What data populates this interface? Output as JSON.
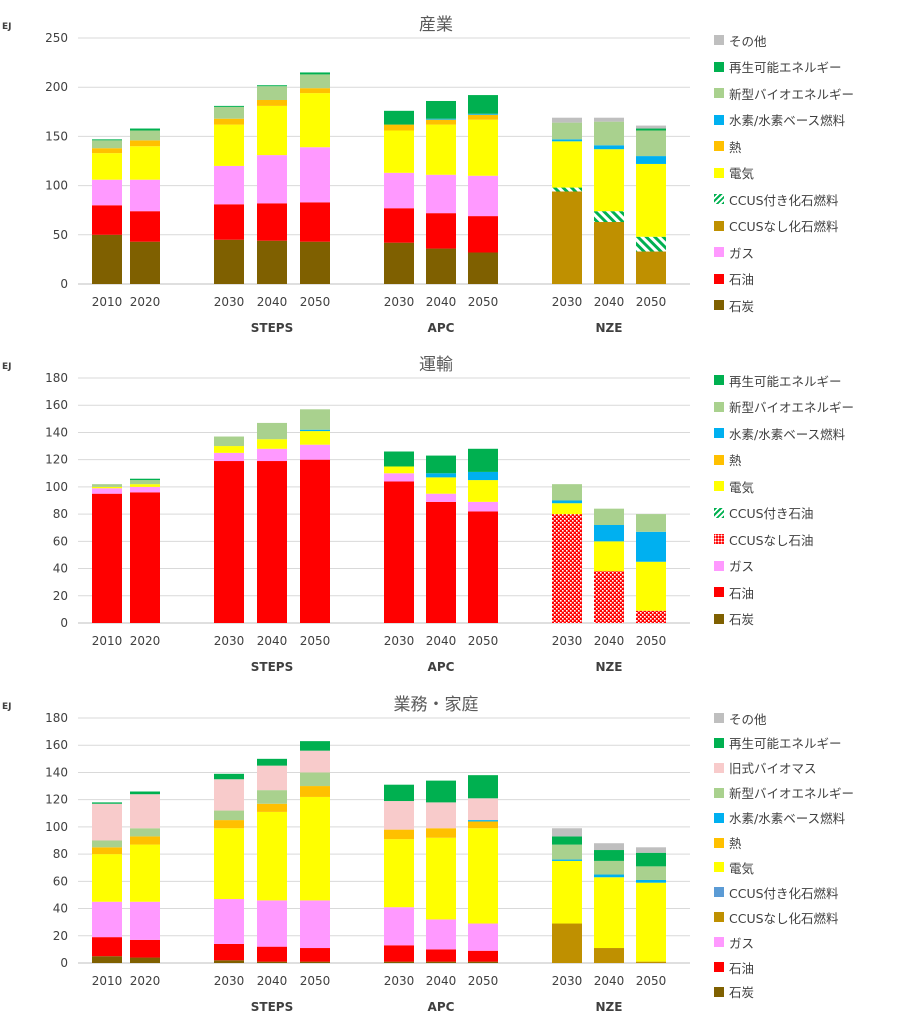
{
  "chart_data": [
    {
      "type": "bar",
      "stacked": true,
      "title": "産業",
      "ylabel": "EJ",
      "ylim": [
        0,
        250
      ],
      "yticks": [
        0,
        50,
        100,
        150,
        200,
        250
      ],
      "grid": true,
      "legend_position": "right",
      "groups": [
        {
          "label": "",
          "categories": [
            "2010",
            "2020"
          ]
        },
        {
          "label": "STEPS",
          "categories": [
            "2030",
            "2040",
            "2050"
          ]
        },
        {
          "label": "APC",
          "categories": [
            "2030",
            "2040",
            "2050"
          ]
        },
        {
          "label": "NZE",
          "categories": [
            "2030",
            "2040",
            "2050"
          ]
        }
      ],
      "series": [
        {
          "name": "石炭",
          "color": "#7f6000",
          "values": [
            50,
            43,
            45,
            44,
            43,
            42,
            36,
            32,
            0,
            0,
            0
          ]
        },
        {
          "name": "石油",
          "color": "#ff0000",
          "values": [
            30,
            31,
            36,
            38,
            40,
            35,
            36,
            37,
            0,
            0,
            0
          ]
        },
        {
          "name": "ガス",
          "color": "#ff99ff",
          "values": [
            26,
            32,
            39,
            49,
            56,
            36,
            39,
            41,
            0,
            0,
            0
          ]
        },
        {
          "name": "CCUSなし化石燃料",
          "color": "#bf9000",
          "values": [
            0,
            0,
            0,
            0,
            0,
            0,
            0,
            0,
            94,
            63,
            33
          ]
        },
        {
          "name": "CCUS付き化石燃料",
          "color": "#00b050",
          "pattern": "hatch",
          "values": [
            0,
            0,
            0,
            0,
            0,
            0,
            0,
            0,
            4,
            11,
            15
          ]
        },
        {
          "name": "電気",
          "color": "#ffff00",
          "values": [
            27,
            34,
            42,
            50,
            55,
            43,
            51,
            57,
            47,
            63,
            74
          ]
        },
        {
          "name": "熱",
          "color": "#ffc000",
          "values": [
            5,
            6,
            6,
            6,
            5,
            6,
            5,
            5,
            0,
            0,
            0
          ]
        },
        {
          "name": "水素/水素ベース燃料",
          "color": "#00b0f0",
          "values": [
            0,
            0,
            0,
            0,
            0,
            0,
            1,
            1,
            2,
            4,
            8
          ]
        },
        {
          "name": "新型バイオエネルギー",
          "color": "#a9d18e",
          "values": [
            8,
            10,
            12,
            14,
            14,
            0,
            0,
            0,
            17,
            24,
            26
          ]
        },
        {
          "name": "再生可能エネルギー",
          "color": "#00b050",
          "values": [
            1,
            2,
            1,
            1,
            2,
            14,
            18,
            19,
            0,
            0,
            2
          ]
        },
        {
          "name": "その他",
          "color": "#bfbfbf",
          "values": [
            0,
            0,
            0,
            0,
            0,
            0,
            0,
            0,
            5,
            4,
            3
          ]
        }
      ]
    },
    {
      "type": "bar",
      "stacked": true,
      "title": "運輸",
      "ylabel": "EJ",
      "ylim": [
        0,
        180
      ],
      "yticks": [
        0,
        20,
        40,
        60,
        80,
        100,
        120,
        140,
        160,
        180
      ],
      "grid": true,
      "legend_position": "right",
      "groups": [
        {
          "label": "",
          "categories": [
            "2010",
            "2020"
          ]
        },
        {
          "label": "STEPS",
          "categories": [
            "2030",
            "2040",
            "2050"
          ]
        },
        {
          "label": "APC",
          "categories": [
            "2030",
            "2040",
            "2050"
          ]
        },
        {
          "label": "NZE",
          "categories": [
            "2030",
            "2040",
            "2050"
          ]
        }
      ],
      "series": [
        {
          "name": "石炭",
          "color": "#7f6000",
          "values": [
            0,
            0,
            0,
            0,
            0,
            0,
            0,
            0,
            0,
            0,
            0
          ]
        },
        {
          "name": "石油",
          "color": "#ff0000",
          "values": [
            95,
            96,
            119,
            119,
            120,
            104,
            89,
            82,
            0,
            0,
            0
          ]
        },
        {
          "name": "ガス",
          "color": "#ff99ff",
          "values": [
            4,
            4,
            6,
            9,
            11,
            6,
            6,
            7,
            0,
            0,
            0
          ]
        },
        {
          "name": "CCUSなし石油",
          "color": "#ff0000",
          "pattern": "dots",
          "values": [
            0,
            0,
            0,
            0,
            0,
            0,
            0,
            0,
            80,
            38,
            9
          ]
        },
        {
          "name": "CCUS付き石油",
          "color": "#00b050",
          "pattern": "hatch",
          "values": [
            0,
            0,
            0,
            0,
            0,
            0,
            0,
            0,
            0,
            0,
            0
          ]
        },
        {
          "name": "電気",
          "color": "#ffff00",
          "values": [
            1,
            2,
            5,
            7,
            10,
            5,
            12,
            16,
            8,
            22,
            36
          ]
        },
        {
          "name": "熱",
          "color": "#ffc000",
          "values": [
            0,
            0,
            0,
            0,
            0,
            0,
            0,
            0,
            0,
            0,
            0
          ]
        },
        {
          "name": "水素/水素ベース燃料",
          "color": "#00b0f0",
          "values": [
            0,
            0,
            0,
            0,
            1,
            0,
            3,
            6,
            2,
            12,
            22
          ]
        },
        {
          "name": "新型バイオエネルギー",
          "color": "#a9d18e",
          "values": [
            2,
            3,
            7,
            12,
            15,
            0,
            0,
            0,
            12,
            12,
            13
          ]
        },
        {
          "name": "再生可能エネルギー",
          "color": "#00b050",
          "values": [
            0,
            1,
            0,
            0,
            0,
            11,
            13,
            17,
            0,
            0,
            0
          ]
        }
      ]
    },
    {
      "type": "bar",
      "stacked": true,
      "title": "業務・家庭",
      "ylabel": "EJ",
      "ylim": [
        0,
        180
      ],
      "yticks": [
        0,
        20,
        40,
        60,
        80,
        100,
        120,
        140,
        160,
        180
      ],
      "grid": true,
      "legend_position": "right",
      "groups": [
        {
          "label": "",
          "categories": [
            "2010",
            "2020"
          ]
        },
        {
          "label": "STEPS",
          "categories": [
            "2030",
            "2040",
            "2050"
          ]
        },
        {
          "label": "APC",
          "categories": [
            "2030",
            "2040",
            "2050"
          ]
        },
        {
          "label": "NZE",
          "categories": [
            "2030",
            "2040",
            "2050"
          ]
        }
      ],
      "series": [
        {
          "name": "石炭",
          "color": "#7f6000",
          "values": [
            5,
            4,
            2,
            1,
            1,
            1,
            1,
            1,
            0,
            0,
            0
          ]
        },
        {
          "name": "石油",
          "color": "#ff0000",
          "values": [
            14,
            13,
            12,
            11,
            10,
            12,
            9,
            8,
            0,
            0,
            0
          ]
        },
        {
          "name": "ガス",
          "color": "#ff99ff",
          "values": [
            26,
            28,
            33,
            34,
            35,
            28,
            22,
            20,
            0,
            0,
            0
          ]
        },
        {
          "name": "CCUSなし化石燃料",
          "color": "#bf9000",
          "values": [
            0,
            0,
            0,
            0,
            0,
            0,
            0,
            0,
            29,
            11,
            1
          ]
        },
        {
          "name": "CCUS付き化石燃料",
          "color": "#5b9bd5",
          "values": [
            0,
            0,
            0,
            0,
            0,
            0,
            0,
            0,
            0,
            0,
            0
          ]
        },
        {
          "name": "電気",
          "color": "#ffff00",
          "values": [
            35,
            42,
            52,
            65,
            76,
            50,
            60,
            70,
            46,
            52,
            58
          ]
        },
        {
          "name": "熱",
          "color": "#ffc000",
          "values": [
            5,
            6,
            6,
            6,
            8,
            7,
            7,
            5,
            0,
            0,
            0
          ]
        },
        {
          "name": "水素/水素ベース燃料",
          "color": "#00b0f0",
          "values": [
            0,
            0,
            0,
            0,
            0,
            0,
            0,
            1,
            1,
            2,
            2
          ]
        },
        {
          "name": "新型バイオエネルギー",
          "color": "#a9d18e",
          "values": [
            5,
            6,
            7,
            10,
            10,
            0,
            0,
            0,
            11,
            10,
            10
          ]
        },
        {
          "name": "旧式バイオマス",
          "color": "#f8cbcb",
          "values": [
            27,
            25,
            23,
            18,
            16,
            21,
            19,
            16,
            0,
            0,
            0
          ]
        },
        {
          "name": "再生可能エネルギー",
          "color": "#00b050",
          "values": [
            1,
            2,
            4,
            5,
            7,
            12,
            16,
            17,
            6,
            8,
            10
          ]
        },
        {
          "name": "その他",
          "color": "#bfbfbf",
          "values": [
            0,
            0,
            0,
            0,
            0,
            0,
            0,
            0,
            6,
            5,
            4
          ]
        }
      ]
    }
  ]
}
